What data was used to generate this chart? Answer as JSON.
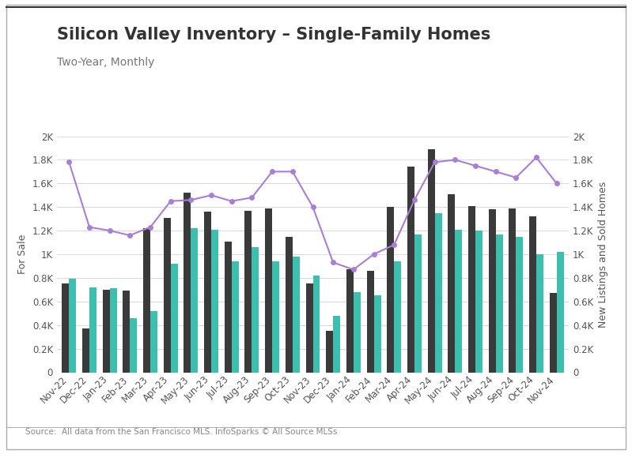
{
  "title": "Silicon Valley Inventory – Single-Family Homes",
  "subtitle": "Two-Year, Monthly",
  "source": "Source:  All data from the San Francisco MLS. InfoSparks © All Source MLSs",
  "months": [
    "Nov-22",
    "Dec-22",
    "Jan-23",
    "Feb-23",
    "Mar-23",
    "Apr-23",
    "May-23",
    "Jun-23",
    "Jul-23",
    "Aug-23",
    "Sep-23",
    "Oct-23",
    "Nov-23",
    "Dec-23",
    "Jan-24",
    "Feb-24",
    "Mar-24",
    "Apr-24",
    "May-24",
    "Jun-24",
    "Jul-24",
    "Aug-24",
    "Sep-24",
    "Oct-24",
    "Nov-24"
  ],
  "for_sale": [
    1780,
    1230,
    1200,
    1160,
    1230,
    1450,
    1460,
    1500,
    1450,
    1480,
    1700,
    1700,
    1400,
    930,
    870,
    1000,
    1080,
    1460,
    1780,
    1800,
    1750,
    1700,
    1650,
    1820,
    1600
  ],
  "new_listings": [
    750,
    370,
    700,
    690,
    1220,
    1310,
    1520,
    1360,
    1110,
    1370,
    1390,
    1150,
    750,
    350,
    870,
    860,
    1400,
    1740,
    1890,
    1510,
    1410,
    1380,
    1390,
    1320,
    670
  ],
  "sold": [
    790,
    720,
    710,
    460,
    520,
    920,
    1220,
    1210,
    940,
    1060,
    940,
    980,
    820,
    480,
    680,
    650,
    940,
    1170,
    1350,
    1210,
    1200,
    1170,
    1150,
    1000,
    1020
  ],
  "bar_color_new": "#3a3a3a",
  "bar_color_sold": "#3dbfb0",
  "line_color": "#a87fd4",
  "ylim": [
    0,
    2000
  ],
  "yticks": [
    0,
    200,
    400,
    600,
    800,
    1000,
    1200,
    1400,
    1600,
    1800,
    2000
  ],
  "ytick_labels": [
    "0",
    "0.2K",
    "0.4K",
    "0.6K",
    "0.8K",
    "1K",
    "1.2K",
    "1.4K",
    "1.6K",
    "1.8K",
    "2K"
  ],
  "ylabel_left": "For Sale",
  "ylabel_right": "New Listings and Sold Homes",
  "bg_color": "#ffffff",
  "grid_color": "#d8d8d8",
  "title_fontsize": 15,
  "subtitle_fontsize": 10,
  "axis_label_fontsize": 9,
  "tick_fontsize": 8.5,
  "legend_fontsize": 10,
  "source_fontsize": 7.5,
  "bar_width": 0.35
}
